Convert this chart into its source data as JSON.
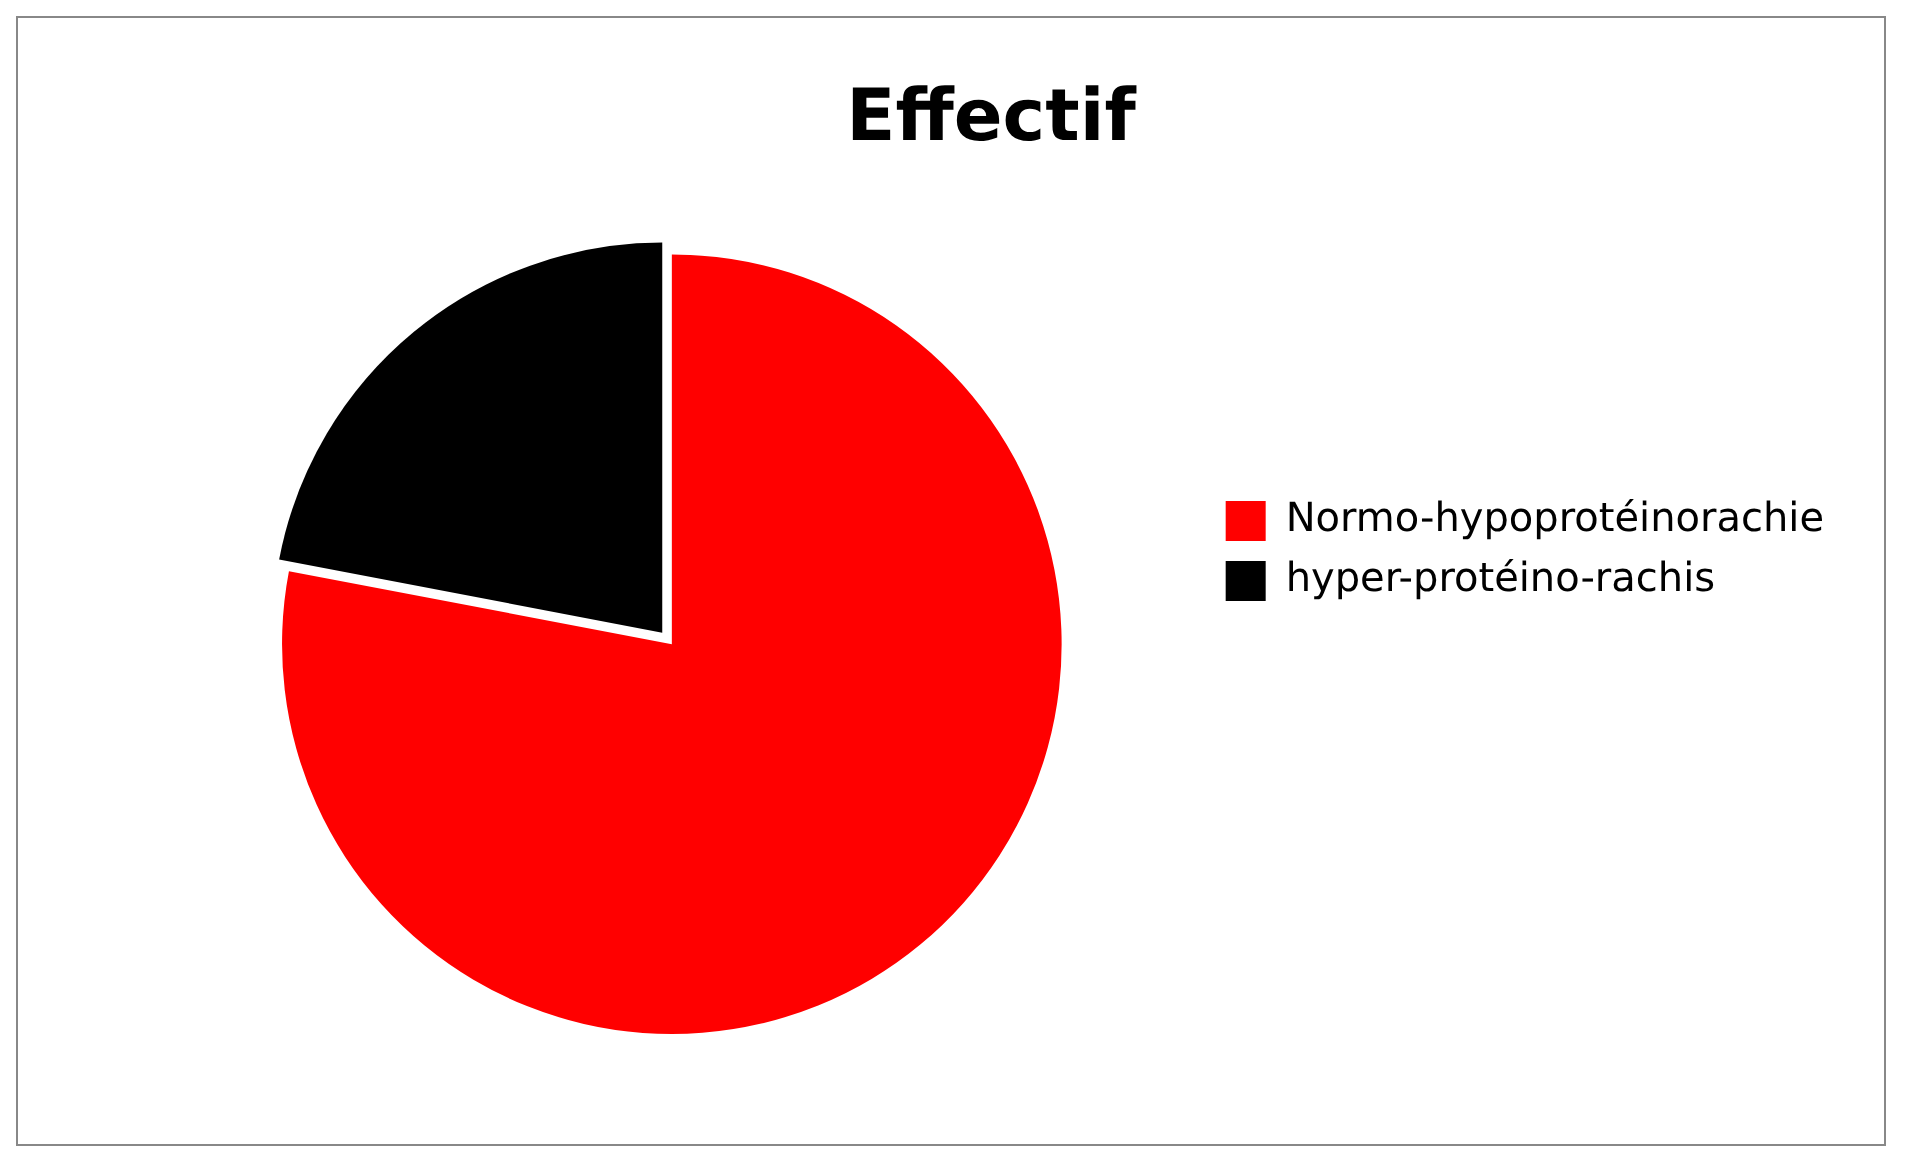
{
  "chart_data": {
    "type": "pie",
    "title": "Effectif",
    "categories": [
      "Normo-hypoprotéinorachie",
      "hyper-protéino-rachis"
    ],
    "values": [
      78,
      22
    ],
    "colors": [
      "#ff0000",
      "#000000"
    ],
    "legend": "right"
  }
}
